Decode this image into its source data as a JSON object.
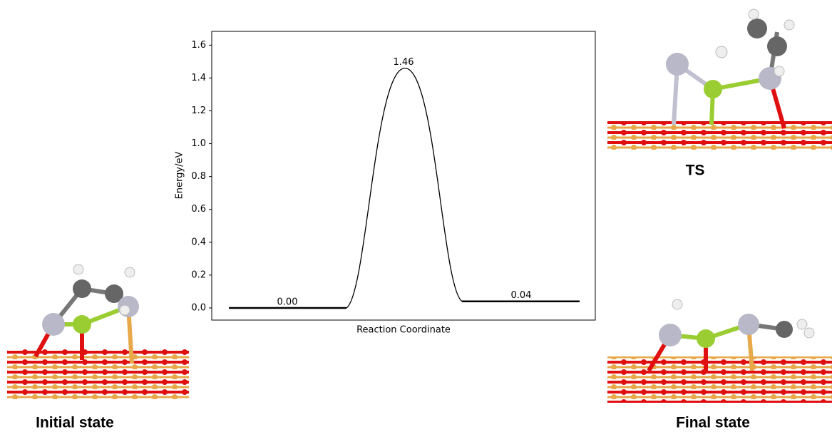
{
  "chart_data": {
    "type": "profile",
    "xlabel": "Reaction Coordinate",
    "ylabel": "Energy/eV",
    "values": [
      0.0,
      1.46,
      0.04
    ],
    "value_labels": [
      "0.00",
      "1.46",
      "0.04"
    ],
    "color": "#000000",
    "ylim": [
      -0.074,
      1.684
    ],
    "yticks": [
      {
        "value": 0,
        "label": "0.0"
      },
      {
        "value": 0.2,
        "label": "0.2"
      },
      {
        "value": 0.4,
        "label": "0.4"
      },
      {
        "value": 0.6,
        "label": "0.6"
      },
      {
        "value": 0.8,
        "label": "0.8"
      },
      {
        "value": 1.0,
        "label": "1.0"
      },
      {
        "value": 1.2,
        "label": "1.2"
      },
      {
        "value": 1.4,
        "label": "1.4"
      },
      {
        "value": 1.6,
        "label": "1.6"
      }
    ]
  },
  "structures": {
    "initial": "Initial state",
    "ts": "TS",
    "final": "Final state"
  }
}
